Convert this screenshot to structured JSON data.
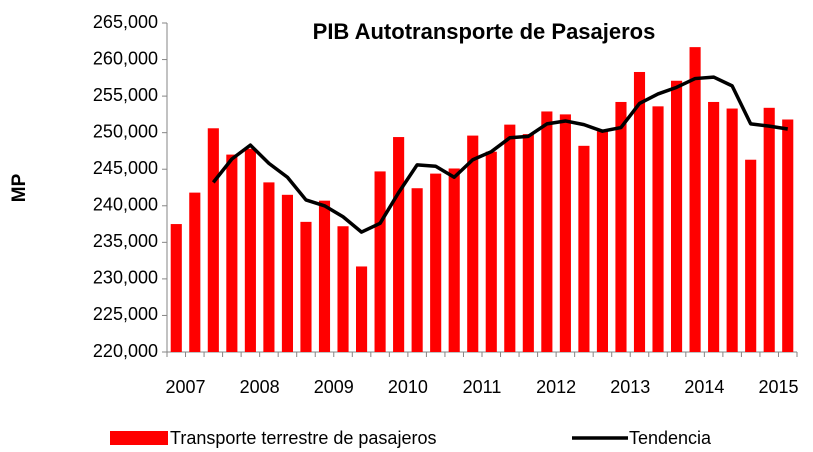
{
  "chart_data": {
    "type": "bar",
    "title": "PIB Autotransporte de Pasajeros",
    "y_label": "MP",
    "categories": [
      "2007",
      null,
      null,
      null,
      "2008",
      null,
      null,
      null,
      "2009",
      null,
      null,
      null,
      "2010",
      null,
      null,
      null,
      "2011",
      null,
      null,
      null,
      "2012",
      null,
      null,
      null,
      "2013",
      null,
      null,
      null,
      "2014",
      null,
      null,
      null,
      "2015",
      null
    ],
    "series": [
      {
        "name": "Transporte terrestre de pasajeros",
        "color": "#ff0000",
        "type": "bar",
        "values": [
          237500,
          241800,
          250600,
          247000,
          247800,
          243200,
          241500,
          237800,
          240700,
          237200,
          231700,
          244700,
          249400,
          242400,
          244400,
          245100,
          249600,
          247400,
          251100,
          249800,
          252900,
          252500,
          248200,
          250200,
          254200,
          258300,
          253600,
          257100,
          261700,
          254200,
          253300,
          246300,
          253400,
          251800
        ]
      },
      {
        "name": "Tendencia",
        "color": "#000000",
        "type": "line",
        "values": [
          null,
          null,
          243200,
          246400,
          248300,
          245800,
          243900,
          240800,
          240000,
          238500,
          236400,
          237600,
          241800,
          245600,
          245400,
          243900,
          246300,
          247400,
          249300,
          249500,
          251200,
          251600,
          251100,
          250200,
          250700,
          254000,
          255300,
          256200,
          257400,
          257600,
          256400,
          251200,
          250900,
          250500
        ]
      }
    ],
    "ylim": [
      220000,
      265000
    ],
    "yticks": [
      {
        "value": 220000,
        "label": "220,000"
      },
      {
        "value": 225000,
        "label": "225,000"
      },
      {
        "value": 230000,
        "label": "230,000"
      },
      {
        "value": 235000,
        "label": "235,000"
      },
      {
        "value": 240000,
        "label": "240,000"
      },
      {
        "value": 245000,
        "label": "245,000"
      },
      {
        "value": 250000,
        "label": "250,000"
      },
      {
        "value": 255000,
        "label": "255,000"
      },
      {
        "value": 260000,
        "label": "260,000"
      },
      {
        "value": 265000,
        "label": "265,000"
      }
    ],
    "legend": "bottom"
  }
}
